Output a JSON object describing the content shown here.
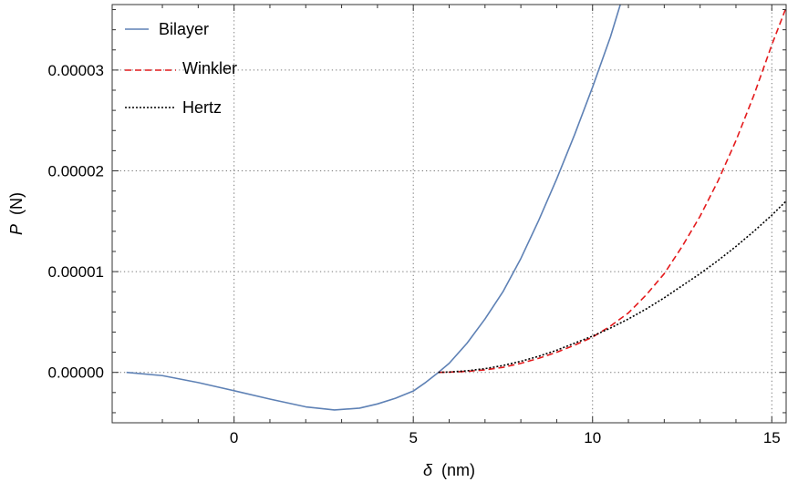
{
  "chart_data": {
    "type": "line",
    "title": "",
    "xlabel_symbol": "δ",
    "xlabel_unit": "(nm)",
    "ylabel_symbol": "P",
    "ylabel_unit": "(N)",
    "xlim": [
      -3.4,
      15.4
    ],
    "ylim": [
      -5e-06,
      3.65e-05
    ],
    "x_ticks": [
      0,
      5,
      10,
      15
    ],
    "x_tick_labels": [
      "0",
      "5",
      "10",
      "15"
    ],
    "y_ticks": [
      0,
      1e-05,
      2e-05,
      3e-05
    ],
    "y_tick_labels": [
      "0.00000",
      "0.00001",
      "0.00002",
      "0.00003"
    ],
    "grid": true,
    "grid_style": "dotted",
    "legend_position": "top-left",
    "series": [
      {
        "name": "Bilayer",
        "color": "#5e81b5",
        "line_style": "solid",
        "x": [
          -3.0,
          -2.0,
          -1.0,
          0.0,
          1.0,
          2.0,
          2.8,
          3.5,
          4.0,
          4.5,
          5.0,
          5.35,
          5.7,
          6.0,
          6.5,
          7.0,
          7.5,
          8.0,
          8.5,
          9.0,
          9.5,
          10.0,
          10.5,
          10.8
        ],
        "y": [
          0.0,
          -3.2e-07,
          -1.01e-06,
          -1.82e-06,
          -2.65e-06,
          -3.42e-06,
          -3.73e-06,
          -3.55e-06,
          -3.13e-06,
          -2.57e-06,
          -1.85e-06,
          -9.8e-07,
          0.0,
          9e-07,
          2.9e-06,
          5.3e-06,
          8e-06,
          1.13e-05,
          1.51e-05,
          1.92e-05,
          2.36e-05,
          2.83e-05,
          3.33e-05,
          3.68e-05
        ]
      },
      {
        "name": "Winkler",
        "color": "#e41a1c",
        "line_style": "dashed",
        "x": [
          5.7,
          6.0,
          6.5,
          7.0,
          7.5,
          8.0,
          8.5,
          9.0,
          9.5,
          10.0,
          10.5,
          11.0,
          11.5,
          12.0,
          12.5,
          13.0,
          13.5,
          14.0,
          14.5,
          15.0,
          15.4
        ],
        "y": [
          0.0,
          2e-08,
          1e-07,
          2.5e-07,
          5e-07,
          9e-07,
          1.4e-06,
          2e-06,
          2.7e-06,
          3.5e-06,
          4.6e-06,
          5.9e-06,
          7.7e-06,
          9.8e-06,
          1.25e-05,
          1.55e-05,
          1.9e-05,
          2.3e-05,
          2.75e-05,
          3.25e-05,
          3.62e-05
        ]
      },
      {
        "name": "Hertz",
        "color": "#000000",
        "line_style": "dotted",
        "x": [
          5.7,
          6.0,
          6.5,
          7.0,
          7.5,
          8.0,
          8.5,
          9.0,
          9.5,
          10.0,
          10.5,
          11.0,
          11.5,
          12.0,
          12.5,
          13.0,
          13.5,
          14.0,
          14.5,
          15.0,
          15.4
        ],
        "y": [
          0.0,
          4e-08,
          1.6e-07,
          3.7e-07,
          6.8e-07,
          1.1e-06,
          1.6e-06,
          2.2e-06,
          2.9e-06,
          3.6e-06,
          4.4e-06,
          5.3e-06,
          6.3e-06,
          7.4e-06,
          8.6e-06,
          9.8e-06,
          1.11e-05,
          1.25e-05,
          1.4e-05,
          1.56e-05,
          1.7e-05
        ]
      }
    ]
  }
}
